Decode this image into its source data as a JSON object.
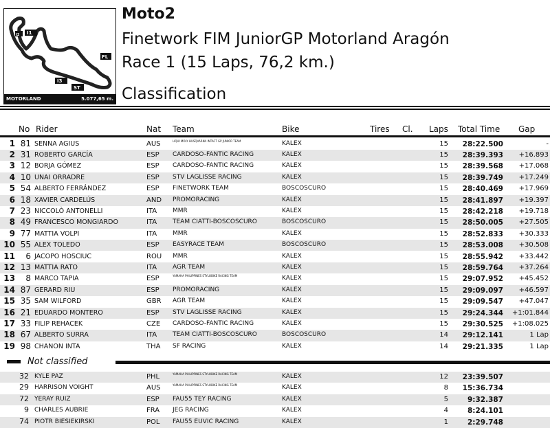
{
  "header": {
    "category": "Moto2",
    "event": "Finetwork FIM JuniorGP Motorland Aragón",
    "race": "Race 1 (15 Laps, 76,2 km.)",
    "document": "Classification"
  },
  "track": {
    "name": "MOTORLAND",
    "length": "5.077,65 m.",
    "markers": [
      "I1",
      "I2",
      "I3",
      "FL",
      "ST"
    ]
  },
  "columns": {
    "no": "No",
    "rider": "Rider",
    "nat": "Nat",
    "team": "Team",
    "bike": "Bike",
    "tires": "Tires",
    "cl": "Cl.",
    "laps": "Laps",
    "time": "Total Time",
    "gap": "Gap"
  },
  "classified": [
    {
      "pos": "1",
      "no": "81",
      "rider": "SENNA AGIUS",
      "nat": "AUS",
      "team": "LIQUI MOLY HUSQVARNA INTACT GP JUNIOR TEAM",
      "bike": "KALEX",
      "laps": "15",
      "time": "28:22.500",
      "gap": "-"
    },
    {
      "pos": "2",
      "no": "31",
      "rider": "ROBERTO GARCÍA",
      "nat": "ESP",
      "team": "CARDOSO-FANTIC RACING",
      "bike": "KALEX",
      "laps": "15",
      "time": "28:39.393",
      "gap": "+16.893"
    },
    {
      "pos": "3",
      "no": "12",
      "rider": "BORJA GÓMEZ",
      "nat": "ESP",
      "team": "CARDOSO-FANTIC RACING",
      "bike": "KALEX",
      "laps": "15",
      "time": "28:39.568",
      "gap": "+17.068"
    },
    {
      "pos": "4",
      "no": "10",
      "rider": "UNAI ORRADRE",
      "nat": "ESP",
      "team": "STV LAGLISSE RACING",
      "bike": "KALEX",
      "laps": "15",
      "time": "28:39.749",
      "gap": "+17.249"
    },
    {
      "pos": "5",
      "no": "54",
      "rider": "ALBERTO FERRÁNDEZ",
      "nat": "ESP",
      "team": "FINETWORK TEAM",
      "bike": "BOSCOSCURO",
      "laps": "15",
      "time": "28:40.469",
      "gap": "+17.969"
    },
    {
      "pos": "6",
      "no": "18",
      "rider": "XAVIER CARDELÚS",
      "nat": "AND",
      "team": "PROMORACING",
      "bike": "KALEX",
      "laps": "15",
      "time": "28:41.897",
      "gap": "+19.397"
    },
    {
      "pos": "7",
      "no": "23",
      "rider": "NICCOLÒ ANTONELLI",
      "nat": "ITA",
      "team": "MMR",
      "bike": "KALEX",
      "laps": "15",
      "time": "28:42.218",
      "gap": "+19.718"
    },
    {
      "pos": "8",
      "no": "49",
      "rider": "FRANCESCO MONGIARDO",
      "nat": "ITA",
      "team": "TEAM CIATTI-BOSCOSCURO",
      "bike": "BOSCOSCURO",
      "laps": "15",
      "time": "28:50.005",
      "gap": "+27.505"
    },
    {
      "pos": "9",
      "no": "77",
      "rider": "MATTIA VOLPI",
      "nat": "ITA",
      "team": "MMR",
      "bike": "KALEX",
      "laps": "15",
      "time": "28:52.833",
      "gap": "+30.333"
    },
    {
      "pos": "10",
      "no": "55",
      "rider": "ALEX TOLEDO",
      "nat": "ESP",
      "team": "EASYRACE TEAM",
      "bike": "BOSCOSCURO",
      "laps": "15",
      "time": "28:53.008",
      "gap": "+30.508"
    },
    {
      "pos": "11",
      "no": "6",
      "rider": "JACOPO HOSCIUC",
      "nat": "ROU",
      "team": "MMR",
      "bike": "KALEX",
      "laps": "15",
      "time": "28:55.942",
      "gap": "+33.442"
    },
    {
      "pos": "12",
      "no": "13",
      "rider": "MATTIA RATO",
      "nat": "ITA",
      "team": "AGR TEAM",
      "bike": "KALEX",
      "laps": "15",
      "time": "28:59.764",
      "gap": "+37.264"
    },
    {
      "pos": "13",
      "no": "8",
      "rider": "MARCO TAPIA",
      "nat": "ESP",
      "team": "YAMAHA PHILIPPINES STYLOBIKE RACING TEAM",
      "bike": "KALEX",
      "laps": "15",
      "time": "29:07.952",
      "gap": "+45.452"
    },
    {
      "pos": "14",
      "no": "87",
      "rider": "GERARD RIU",
      "nat": "ESP",
      "team": "PROMORACING",
      "bike": "KALEX",
      "laps": "15",
      "time": "29:09.097",
      "gap": "+46.597"
    },
    {
      "pos": "15",
      "no": "35",
      "rider": "SAM WILFORD",
      "nat": "GBR",
      "team": "AGR TEAM",
      "bike": "KALEX",
      "laps": "15",
      "time": "29:09.547",
      "gap": "+47.047"
    },
    {
      "pos": "16",
      "no": "21",
      "rider": "EDUARDO MONTERO",
      "nat": "ESP",
      "team": "STV LAGLISSE RACING",
      "bike": "KALEX",
      "laps": "15",
      "time": "29:24.344",
      "gap": "+1:01.844"
    },
    {
      "pos": "17",
      "no": "33",
      "rider": "FILIP REHACEK",
      "nat": "CZE",
      "team": "CARDOSO-FANTIC RACING",
      "bike": "KALEX",
      "laps": "15",
      "time": "29:30.525",
      "gap": "+1:08.025"
    },
    {
      "pos": "18",
      "no": "67",
      "rider": "ALBERTO SURRA",
      "nat": "ITA",
      "team": "TEAM CIATTI-BOSCOSCURO",
      "bike": "BOSCOSCURO",
      "laps": "14",
      "time": "29:12.141",
      "gap": "1 Lap"
    },
    {
      "pos": "19",
      "no": "98",
      "rider": "CHANON INTA",
      "nat": "THA",
      "team": "SF RACING",
      "bike": "KALEX",
      "laps": "14",
      "time": "29:21.335",
      "gap": "1 Lap"
    }
  ],
  "not_classified_label": "Not classified",
  "not_classified": [
    {
      "no": "32",
      "rider": "KYLE PAZ",
      "nat": "PHL",
      "team": "YAMAHA PHILIPPINES STYLOBIKE RACING TEAM",
      "bike": "KALEX",
      "laps": "12",
      "time": "23:39.507"
    },
    {
      "no": "29",
      "rider": "HARRISON VOIGHT",
      "nat": "AUS",
      "team": "YAMAHA PHILIPPINES STYLOBIKE RACING TEAM",
      "bike": "KALEX",
      "laps": "8",
      "time": "15:36.734"
    },
    {
      "no": "72",
      "rider": "YERAY RUIZ",
      "nat": "ESP",
      "team": "FAU55 TEY RACING",
      "bike": "KALEX",
      "laps": "5",
      "time": "9:32.387"
    },
    {
      "no": "9",
      "rider": "CHARLES AUBRIE",
      "nat": "FRA",
      "team": "JEG RACING",
      "bike": "KALEX",
      "laps": "4",
      "time": "8:24.101"
    },
    {
      "no": "74",
      "rider": "PIOTR BIESIEKIRSKI",
      "nat": "POL",
      "team": "FAU55 EUVIC RACING",
      "bike": "KALEX",
      "laps": "1",
      "time": "2:29.748"
    }
  ]
}
